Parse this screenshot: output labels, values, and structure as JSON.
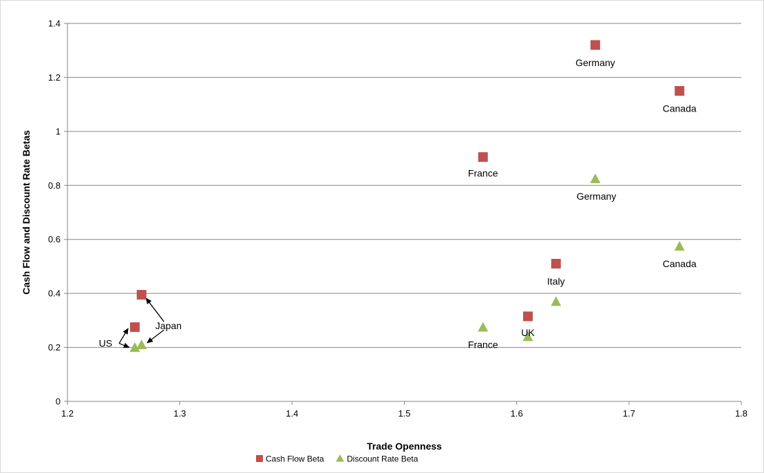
{
  "chart_data": {
    "type": "scatter",
    "title": "",
    "xlabel": "Trade Openness",
    "ylabel": "Cash Flow and Discount Rate Betas",
    "xlim": [
      1.2,
      1.8
    ],
    "ylim": [
      0,
      1.4
    ],
    "xticks": [
      "1.2",
      "1.3",
      "1.4",
      "1.5",
      "1.6",
      "1.7",
      "1.8"
    ],
    "yticks": [
      "0",
      "0.2",
      "0.4",
      "0.6",
      "0.8",
      "1",
      "1.2",
      "1.4"
    ],
    "grid": "horizontal",
    "legend_position": "bottom",
    "colors": {
      "cash_flow": "#C0504D",
      "discount_rate": "#9BBB59"
    },
    "series": [
      {
        "name": "Cash Flow Beta",
        "marker": "square",
        "points": [
          {
            "label": "US",
            "x": 1.26,
            "y": 0.275
          },
          {
            "label": "Japan",
            "x": 1.266,
            "y": 0.395
          },
          {
            "label": "France",
            "x": 1.57,
            "y": 0.905
          },
          {
            "label": "UK",
            "x": 1.61,
            "y": 0.315
          },
          {
            "label": "Italy",
            "x": 1.635,
            "y": 0.51
          },
          {
            "label": "Germany",
            "x": 1.67,
            "y": 1.32
          },
          {
            "label": "Canada",
            "x": 1.745,
            "y": 1.15
          }
        ]
      },
      {
        "name": "Discount Rate Beta",
        "marker": "triangle",
        "points": [
          {
            "label": "US",
            "x": 1.26,
            "y": 0.2
          },
          {
            "label": "Japan",
            "x": 1.266,
            "y": 0.21
          },
          {
            "label": "France",
            "x": 1.57,
            "y": 0.275
          },
          {
            "label": "UK",
            "x": 1.61,
            "y": 0.24
          },
          {
            "label": "Italy",
            "x": 1.635,
            "y": 0.37
          },
          {
            "label": "Germany",
            "x": 1.67,
            "y": 0.825
          },
          {
            "label": "Canada",
            "x": 1.745,
            "y": 0.575
          }
        ]
      }
    ],
    "annotations": [
      {
        "text": "US",
        "x": 1.228,
        "y": 0.215
      },
      {
        "text": "Japan",
        "x": 1.29,
        "y": 0.28
      },
      {
        "text": "France",
        "x": 1.57,
        "y": 0.845
      },
      {
        "text": "Germany",
        "x": 1.67,
        "y": 1.255
      },
      {
        "text": "Canada",
        "x": 1.745,
        "y": 1.085
      },
      {
        "text": "Germany",
        "x": 1.671,
        "y": 0.76
      },
      {
        "text": "Canada",
        "x": 1.745,
        "y": 0.51
      },
      {
        "text": "Italy",
        "x": 1.635,
        "y": 0.445
      },
      {
        "text": "UK",
        "x": 1.61,
        "y": 0.255
      },
      {
        "text": "France",
        "x": 1.57,
        "y": 0.21
      }
    ]
  }
}
